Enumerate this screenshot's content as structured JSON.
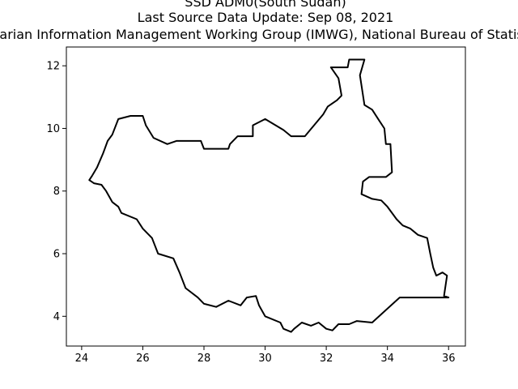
{
  "title_lines": [
    "SSD ADM0(South Sudan)",
    "Last Source Data Update: Sep 08, 2021",
    "Humanitarian Information Management Working Group (IMWG), National Bureau of Statistics (NBS)"
  ],
  "chart_data": {
    "type": "map",
    "xlim": [
      23.5,
      36.55
    ],
    "ylim": [
      3.05,
      12.6
    ],
    "x_ticks": [
      24,
      26,
      28,
      30,
      32,
      34,
      36
    ],
    "y_ticks": [
      4,
      6,
      8,
      10,
      12
    ],
    "outline_color": "#000000",
    "boundary": [
      [
        24.35,
        8.5
      ],
      [
        24.5,
        8.75
      ],
      [
        24.7,
        9.2
      ],
      [
        24.85,
        9.6
      ],
      [
        25.0,
        9.8
      ],
      [
        25.2,
        10.3
      ],
      [
        25.6,
        10.4
      ],
      [
        26.0,
        10.4
      ],
      [
        26.1,
        10.1
      ],
      [
        26.35,
        9.7
      ],
      [
        26.8,
        9.5
      ],
      [
        27.1,
        9.6
      ],
      [
        27.9,
        9.6
      ],
      [
        28.0,
        9.35
      ],
      [
        28.8,
        9.35
      ],
      [
        28.85,
        9.5
      ],
      [
        29.1,
        9.75
      ],
      [
        29.6,
        9.75
      ],
      [
        29.6,
        10.1
      ],
      [
        30.0,
        10.3
      ],
      [
        30.6,
        9.95
      ],
      [
        30.85,
        9.75
      ],
      [
        31.3,
        9.75
      ],
      [
        31.6,
        10.1
      ],
      [
        31.9,
        10.45
      ],
      [
        32.05,
        10.7
      ],
      [
        32.35,
        10.9
      ],
      [
        32.5,
        11.05
      ],
      [
        32.4,
        11.6
      ],
      [
        32.15,
        11.95
      ],
      [
        32.7,
        11.95
      ],
      [
        32.75,
        12.2
      ],
      [
        33.25,
        12.2
      ],
      [
        33.1,
        11.7
      ],
      [
        33.25,
        10.75
      ],
      [
        33.5,
        10.6
      ],
      [
        33.7,
        10.3
      ],
      [
        33.9,
        10.0
      ],
      [
        33.95,
        9.5
      ],
      [
        34.1,
        9.5
      ],
      [
        34.15,
        8.6
      ],
      [
        33.95,
        8.45
      ],
      [
        33.4,
        8.45
      ],
      [
        33.2,
        8.3
      ],
      [
        33.15,
        7.9
      ],
      [
        33.5,
        7.75
      ],
      [
        33.8,
        7.7
      ],
      [
        34.0,
        7.5
      ],
      [
        34.3,
        7.1
      ],
      [
        34.5,
        6.9
      ],
      [
        34.75,
        6.8
      ],
      [
        35.0,
        6.6
      ],
      [
        35.3,
        6.5
      ],
      [
        35.4,
        6.0
      ],
      [
        35.5,
        5.55
      ],
      [
        35.6,
        5.3
      ],
      [
        35.8,
        5.4
      ],
      [
        35.95,
        5.3
      ],
      [
        35.85,
        4.65
      ],
      [
        36.0,
        4.6
      ],
      [
        34.4,
        4.6
      ],
      [
        33.5,
        3.8
      ],
      [
        33.0,
        3.85
      ],
      [
        32.75,
        3.75
      ],
      [
        32.4,
        3.75
      ],
      [
        32.2,
        3.55
      ],
      [
        32.0,
        3.6
      ],
      [
        31.75,
        3.8
      ],
      [
        31.5,
        3.7
      ],
      [
        31.2,
        3.8
      ],
      [
        30.95,
        3.6
      ],
      [
        30.85,
        3.5
      ],
      [
        30.6,
        3.6
      ],
      [
        30.5,
        3.8
      ],
      [
        30.0,
        4.0
      ],
      [
        29.8,
        4.35
      ],
      [
        29.7,
        4.65
      ],
      [
        29.4,
        4.6
      ],
      [
        29.2,
        4.35
      ],
      [
        28.8,
        4.5
      ],
      [
        28.4,
        4.3
      ],
      [
        28.0,
        4.4
      ],
      [
        27.8,
        4.6
      ],
      [
        27.4,
        4.9
      ],
      [
        27.2,
        5.4
      ],
      [
        27.0,
        5.85
      ],
      [
        26.5,
        6.0
      ],
      [
        26.3,
        6.5
      ],
      [
        26.0,
        6.8
      ],
      [
        25.8,
        7.1
      ],
      [
        25.3,
        7.3
      ],
      [
        25.2,
        7.5
      ],
      [
        25.0,
        7.65
      ],
      [
        24.8,
        8.0
      ],
      [
        24.65,
        8.2
      ],
      [
        24.4,
        8.25
      ],
      [
        24.25,
        8.35
      ],
      [
        24.35,
        8.5
      ]
    ]
  }
}
